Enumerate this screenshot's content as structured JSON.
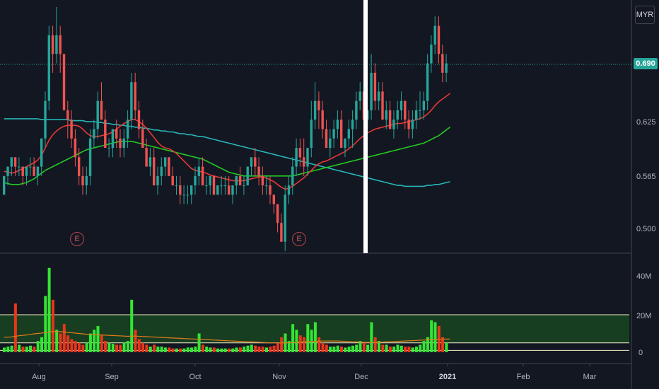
{
  "header": {
    "currency": "MYR",
    "last_price": "0.690"
  },
  "price_axis": {
    "ticks": [
      "0.690",
      "0.625",
      "0.565",
      "0.500"
    ]
  },
  "volume_axis": {
    "ticks": [
      "40M",
      "20M",
      "0"
    ]
  },
  "time_axis": {
    "ticks": [
      {
        "label": "Aug",
        "bold": false
      },
      {
        "label": "Sep",
        "bold": false
      },
      {
        "label": "Oct",
        "bold": false
      },
      {
        "label": "Nov",
        "bold": false
      },
      {
        "label": "Dec",
        "bold": false
      },
      {
        "label": "2021",
        "bold": true
      },
      {
        "label": "Feb",
        "bold": false
      },
      {
        "label": "Mar",
        "bold": false
      }
    ]
  },
  "earnings_markers": [
    {
      "label": "E",
      "date": "2020-09-07"
    },
    {
      "label": "E",
      "date": "2020-11-09"
    }
  ],
  "colors": {
    "background": "#131722",
    "up": "#26a69a",
    "down": "#ef5350",
    "ma_fast": "#e53935",
    "ma_mid": "#22c922",
    "ma_slow": "#26b5b5",
    "vol_up": "#33e633",
    "vol_down": "#e8361b",
    "vol_ma": "#e07b1c",
    "vol_band": "#1b5e20"
  },
  "chart_data": {
    "type": "candlestick",
    "interval": "daily",
    "start_date": "2020-07-21",
    "ylim": [
      0.49,
      0.75
    ],
    "vlim_millions": [
      0,
      48
    ],
    "grid": false,
    "candles": [
      [
        0.55,
        0.57,
        0.55,
        0.57,
        2.5
      ],
      [
        0.57,
        0.58,
        0.56,
        0.58,
        3
      ],
      [
        0.58,
        0.59,
        0.57,
        0.59,
        3.5
      ],
      [
        0.59,
        0.59,
        0.57,
        0.58,
        26
      ],
      [
        0.58,
        0.59,
        0.57,
        0.58,
        4
      ],
      [
        0.58,
        0.58,
        0.56,
        0.57,
        3
      ],
      [
        0.57,
        0.58,
        0.56,
        0.58,
        3
      ],
      [
        0.58,
        0.59,
        0.57,
        0.58,
        3.5
      ],
      [
        0.58,
        0.59,
        0.57,
        0.57,
        3
      ],
      [
        0.57,
        0.58,
        0.56,
        0.58,
        6
      ],
      [
        0.58,
        0.61,
        0.57,
        0.61,
        8
      ],
      [
        0.61,
        0.66,
        0.6,
        0.65,
        30
      ],
      [
        0.65,
        0.73,
        0.64,
        0.72,
        45
      ],
      [
        0.72,
        0.73,
        0.68,
        0.7,
        28
      ],
      [
        0.7,
        0.75,
        0.69,
        0.72,
        12
      ],
      [
        0.72,
        0.73,
        0.68,
        0.7,
        10
      ],
      [
        0.7,
        0.7,
        0.64,
        0.64,
        15
      ],
      [
        0.64,
        0.65,
        0.61,
        0.63,
        9
      ],
      [
        0.63,
        0.64,
        0.6,
        0.61,
        7
      ],
      [
        0.61,
        0.62,
        0.58,
        0.59,
        6
      ],
      [
        0.59,
        0.6,
        0.56,
        0.57,
        5
      ],
      [
        0.57,
        0.58,
        0.55,
        0.56,
        4
      ],
      [
        0.56,
        0.58,
        0.55,
        0.57,
        5
      ],
      [
        0.57,
        0.62,
        0.56,
        0.61,
        10
      ],
      [
        0.61,
        0.63,
        0.6,
        0.62,
        12
      ],
      [
        0.62,
        0.66,
        0.61,
        0.65,
        14
      ],
      [
        0.65,
        0.67,
        0.63,
        0.63,
        9
      ],
      [
        0.63,
        0.64,
        0.6,
        0.6,
        6
      ],
      [
        0.6,
        0.61,
        0.59,
        0.6,
        5
      ],
      [
        0.6,
        0.62,
        0.59,
        0.62,
        4.5
      ],
      [
        0.62,
        0.63,
        0.6,
        0.61,
        4
      ],
      [
        0.61,
        0.62,
        0.59,
        0.6,
        4
      ],
      [
        0.6,
        0.62,
        0.59,
        0.61,
        5
      ],
      [
        0.61,
        0.64,
        0.6,
        0.63,
        6
      ],
      [
        0.63,
        0.68,
        0.62,
        0.67,
        28
      ],
      [
        0.67,
        0.68,
        0.63,
        0.64,
        12
      ],
      [
        0.64,
        0.65,
        0.61,
        0.62,
        7
      ],
      [
        0.62,
        0.63,
        0.6,
        0.6,
        5
      ],
      [
        0.6,
        0.61,
        0.58,
        0.58,
        4
      ],
      [
        0.58,
        0.6,
        0.57,
        0.59,
        3
      ],
      [
        0.59,
        0.6,
        0.56,
        0.56,
        4
      ],
      [
        0.56,
        0.58,
        0.55,
        0.57,
        3
      ],
      [
        0.57,
        0.59,
        0.56,
        0.58,
        3
      ],
      [
        0.58,
        0.59,
        0.57,
        0.59,
        2.5
      ],
      [
        0.59,
        0.59,
        0.57,
        0.57,
        2.5
      ],
      [
        0.57,
        0.58,
        0.56,
        0.56,
        2
      ],
      [
        0.56,
        0.57,
        0.55,
        0.56,
        2
      ],
      [
        0.56,
        0.57,
        0.54,
        0.55,
        2
      ],
      [
        0.55,
        0.56,
        0.54,
        0.55,
        2
      ],
      [
        0.55,
        0.56,
        0.54,
        0.55,
        2.5
      ],
      [
        0.55,
        0.56,
        0.54,
        0.56,
        2.5
      ],
      [
        0.56,
        0.58,
        0.55,
        0.57,
        3
      ],
      [
        0.57,
        0.59,
        0.56,
        0.58,
        10
      ],
      [
        0.58,
        0.59,
        0.56,
        0.56,
        4
      ],
      [
        0.56,
        0.57,
        0.55,
        0.56,
        3
      ],
      [
        0.56,
        0.57,
        0.55,
        0.57,
        2.5
      ],
      [
        0.57,
        0.57,
        0.55,
        0.55,
        2.5
      ],
      [
        0.55,
        0.56,
        0.55,
        0.56,
        2
      ],
      [
        0.56,
        0.57,
        0.55,
        0.56,
        2
      ],
      [
        0.56,
        0.57,
        0.55,
        0.56,
        2
      ],
      [
        0.56,
        0.57,
        0.55,
        0.55,
        2
      ],
      [
        0.55,
        0.56,
        0.54,
        0.56,
        2
      ],
      [
        0.56,
        0.57,
        0.55,
        0.57,
        2.5
      ],
      [
        0.57,
        0.58,
        0.56,
        0.56,
        2.5
      ],
      [
        0.56,
        0.57,
        0.55,
        0.56,
        3
      ],
      [
        0.56,
        0.58,
        0.56,
        0.58,
        3.5
      ],
      [
        0.58,
        0.59,
        0.57,
        0.59,
        4
      ],
      [
        0.59,
        0.6,
        0.57,
        0.58,
        3.5
      ],
      [
        0.58,
        0.59,
        0.56,
        0.57,
        3
      ],
      [
        0.57,
        0.58,
        0.55,
        0.56,
        3
      ],
      [
        0.56,
        0.57,
        0.55,
        0.56,
        2.5
      ],
      [
        0.56,
        0.57,
        0.54,
        0.55,
        3
      ],
      [
        0.55,
        0.55,
        0.53,
        0.54,
        3.5
      ],
      [
        0.54,
        0.54,
        0.51,
        0.52,
        5
      ],
      [
        0.52,
        0.53,
        0.5,
        0.5,
        8
      ],
      [
        0.5,
        0.56,
        0.49,
        0.55,
        10
      ],
      [
        0.55,
        0.57,
        0.54,
        0.56,
        6
      ],
      [
        0.56,
        0.59,
        0.55,
        0.58,
        15
      ],
      [
        0.58,
        0.61,
        0.57,
        0.6,
        12
      ],
      [
        0.6,
        0.61,
        0.58,
        0.59,
        9
      ],
      [
        0.59,
        0.61,
        0.57,
        0.58,
        8
      ],
      [
        0.58,
        0.6,
        0.57,
        0.6,
        15
      ],
      [
        0.6,
        0.65,
        0.59,
        0.63,
        12
      ],
      [
        0.63,
        0.67,
        0.62,
        0.65,
        16
      ],
      [
        0.65,
        0.66,
        0.62,
        0.64,
        8
      ],
      [
        0.64,
        0.65,
        0.61,
        0.62,
        5
      ],
      [
        0.62,
        0.63,
        0.6,
        0.6,
        4
      ],
      [
        0.6,
        0.62,
        0.59,
        0.61,
        3
      ],
      [
        0.61,
        0.63,
        0.6,
        0.62,
        3
      ],
      [
        0.62,
        0.64,
        0.61,
        0.63,
        3.5
      ],
      [
        0.63,
        0.64,
        0.6,
        0.6,
        3
      ],
      [
        0.6,
        0.61,
        0.59,
        0.61,
        2.5
      ],
      [
        0.61,
        0.63,
        0.6,
        0.62,
        3
      ],
      [
        0.62,
        0.64,
        0.6,
        0.63,
        3.5
      ],
      [
        0.63,
        0.66,
        0.62,
        0.65,
        4
      ],
      [
        0.65,
        0.67,
        0.64,
        0.66,
        6
      ],
      [
        0.66,
        0.67,
        0.63,
        0.63,
        5
      ],
      [
        0.63,
        0.64,
        0.62,
        0.64,
        4
      ],
      [
        0.64,
        0.7,
        0.63,
        0.68,
        16
      ],
      [
        0.68,
        0.69,
        0.64,
        0.65,
        8
      ],
      [
        0.65,
        0.67,
        0.64,
        0.66,
        6
      ],
      [
        0.66,
        0.67,
        0.63,
        0.63,
        4
      ],
      [
        0.63,
        0.65,
        0.62,
        0.64,
        4
      ],
      [
        0.64,
        0.65,
        0.62,
        0.62,
        3
      ],
      [
        0.62,
        0.64,
        0.61,
        0.63,
        3
      ],
      [
        0.63,
        0.65,
        0.62,
        0.64,
        4
      ],
      [
        0.64,
        0.66,
        0.63,
        0.65,
        3.5
      ],
      [
        0.65,
        0.65,
        0.62,
        0.63,
        3
      ],
      [
        0.63,
        0.64,
        0.61,
        0.62,
        3
      ],
      [
        0.62,
        0.64,
        0.61,
        0.63,
        2.5
      ],
      [
        0.63,
        0.65,
        0.62,
        0.64,
        3
      ],
      [
        0.64,
        0.66,
        0.63,
        0.64,
        4
      ],
      [
        0.64,
        0.66,
        0.63,
        0.65,
        6
      ],
      [
        0.65,
        0.7,
        0.64,
        0.69,
        8
      ],
      [
        0.69,
        0.72,
        0.68,
        0.71,
        17
      ],
      [
        0.71,
        0.74,
        0.7,
        0.73,
        16
      ],
      [
        0.73,
        0.74,
        0.69,
        0.7,
        14
      ],
      [
        0.7,
        0.71,
        0.67,
        0.68,
        8
      ],
      [
        0.68,
        0.7,
        0.67,
        0.69,
        5
      ]
    ],
    "ma_fast": [
      0.575,
      0.574,
      0.573,
      0.574,
      0.576,
      0.578,
      0.58,
      0.582,
      0.584,
      0.587,
      0.592,
      0.6,
      0.608,
      0.614,
      0.618,
      0.621,
      0.623,
      0.624,
      0.624,
      0.624,
      0.623,
      0.62,
      0.616,
      0.613,
      0.612,
      0.612,
      0.613,
      0.614,
      0.615,
      0.617,
      0.62,
      0.623,
      0.626,
      0.628,
      0.63,
      0.63,
      0.628,
      0.625,
      0.621,
      0.616,
      0.611,
      0.606,
      0.602,
      0.6,
      0.599,
      0.597,
      0.594,
      0.59,
      0.586,
      0.582,
      0.578,
      0.576,
      0.575,
      0.574,
      0.573,
      0.571,
      0.57,
      0.569,
      0.568,
      0.567,
      0.566,
      0.565,
      0.565,
      0.565,
      0.565,
      0.566,
      0.567,
      0.568,
      0.569,
      0.569,
      0.568,
      0.566,
      0.564,
      0.561,
      0.558,
      0.556,
      0.557,
      0.559,
      0.562,
      0.565,
      0.568,
      0.572,
      0.576,
      0.58,
      0.583,
      0.585,
      0.586,
      0.588,
      0.59,
      0.592,
      0.594,
      0.596,
      0.599,
      0.602,
      0.606,
      0.61,
      0.613,
      0.616,
      0.618,
      0.62,
      0.621,
      0.622,
      0.623,
      0.624,
      0.625,
      0.626,
      0.626,
      0.627,
      0.628,
      0.629,
      0.63,
      0.631,
      0.633,
      0.636,
      0.64,
      0.645,
      0.649,
      0.652,
      0.655,
      0.658
    ],
    "ma_mid": [
      0.563,
      0.562,
      0.561,
      0.561,
      0.561,
      0.562,
      0.563,
      0.565,
      0.567,
      0.57,
      0.573,
      0.576,
      0.578,
      0.58,
      0.582,
      0.584,
      0.586,
      0.588,
      0.59,
      0.592,
      0.594,
      0.596,
      0.598,
      0.599,
      0.6,
      0.601,
      0.602,
      0.603,
      0.604,
      0.605,
      0.606,
      0.607,
      0.607,
      0.607,
      0.607,
      0.606,
      0.605,
      0.604,
      0.603,
      0.602,
      0.601,
      0.6,
      0.599,
      0.598,
      0.597,
      0.596,
      0.595,
      0.594,
      0.593,
      0.592,
      0.591,
      0.59,
      0.589,
      0.588,
      0.586,
      0.584,
      0.582,
      0.58,
      0.578,
      0.576,
      0.574,
      0.573,
      0.572,
      0.571,
      0.57,
      0.57,
      0.57,
      0.57,
      0.57,
      0.57,
      0.57,
      0.57,
      0.57,
      0.57,
      0.57,
      0.57,
      0.57,
      0.57,
      0.571,
      0.572,
      0.573,
      0.574,
      0.575,
      0.576,
      0.577,
      0.578,
      0.579,
      0.58,
      0.581,
      0.582,
      0.583,
      0.584,
      0.585,
      0.586,
      0.587,
      0.588,
      0.589,
      0.59,
      0.591,
      0.592,
      0.593,
      0.594,
      0.595,
      0.596,
      0.597,
      0.598,
      0.599,
      0.6,
      0.601,
      0.602,
      0.603,
      0.604,
      0.605,
      0.607,
      0.609,
      0.611,
      0.613,
      0.616,
      0.619,
      0.622
    ],
    "ma_slow": [
      0.631,
      0.631,
      0.631,
      0.631,
      0.631,
      0.631,
      0.631,
      0.631,
      0.631,
      0.631,
      0.63,
      0.63,
      0.63,
      0.63,
      0.63,
      0.63,
      0.63,
      0.63,
      0.629,
      0.629,
      0.629,
      0.629,
      0.628,
      0.628,
      0.628,
      0.627,
      0.627,
      0.626,
      0.626,
      0.625,
      0.625,
      0.624,
      0.624,
      0.623,
      0.623,
      0.622,
      0.622,
      0.621,
      0.621,
      0.62,
      0.619,
      0.619,
      0.618,
      0.618,
      0.617,
      0.617,
      0.616,
      0.615,
      0.615,
      0.614,
      0.614,
      0.613,
      0.612,
      0.612,
      0.611,
      0.61,
      0.609,
      0.608,
      0.607,
      0.606,
      0.605,
      0.604,
      0.603,
      0.602,
      0.601,
      0.6,
      0.599,
      0.598,
      0.597,
      0.596,
      0.595,
      0.594,
      0.593,
      0.592,
      0.591,
      0.59,
      0.589,
      0.588,
      0.587,
      0.586,
      0.585,
      0.584,
      0.583,
      0.582,
      0.581,
      0.58,
      0.579,
      0.578,
      0.577,
      0.576,
      0.575,
      0.574,
      0.573,
      0.572,
      0.571,
      0.57,
      0.569,
      0.568,
      0.567,
      0.566,
      0.565,
      0.564,
      0.563,
      0.562,
      0.561,
      0.56,
      0.56,
      0.559,
      0.559,
      0.559,
      0.559,
      0.559,
      0.559,
      0.56,
      0.56,
      0.561,
      0.561,
      0.562,
      0.563,
      0.564
    ],
    "volume_ma_millions": [
      8,
      8,
      8.2,
      8.5,
      8.8,
      9,
      9.2,
      9.5,
      9.8,
      10,
      10.2,
      10.5,
      10.8,
      11,
      11,
      11,
      10.8,
      10.6,
      10.4,
      10.2,
      10,
      9.8,
      9.6,
      9.5,
      9.4,
      9.3,
      9.2,
      9.1,
      9,
      8.9,
      8.8,
      8.7,
      8.6,
      8.5,
      8.6,
      8.6,
      8.5,
      8.4,
      8.3,
      8.2,
      8.1,
      8,
      7.9,
      7.8,
      7.7,
      7.6,
      7.5,
      7.4,
      7.3,
      7.2,
      7.1,
      7,
      6.9,
      6.8,
      6.7,
      6.6,
      6.5,
      6.4,
      6.3,
      6.2,
      6.1,
      6,
      5.9,
      5.8,
      5.7,
      5.6,
      5.5,
      5.4,
      5.3,
      5.2,
      5.1,
      5,
      5,
      5,
      5,
      5,
      5.1,
      5.2,
      5.3,
      5.4,
      5.5,
      5.6,
      5.7,
      5.8,
      5.9,
      6,
      6,
      6,
      6,
      6,
      5.9,
      5.8,
      5.7,
      5.6,
      5.5,
      5.4,
      5.3,
      5.2,
      5.2,
      5.2,
      5.3,
      5.4,
      5.5,
      5.6,
      5.7,
      5.8,
      5.9,
      6,
      6.1,
      6.2,
      6.3,
      6.4,
      6.5,
      6.6,
      6.7,
      6.8,
      6.9,
      7,
      7,
      7
    ],
    "volume_band_millions": [
      5,
      20
    ],
    "volume_baseline_millions": 1
  }
}
